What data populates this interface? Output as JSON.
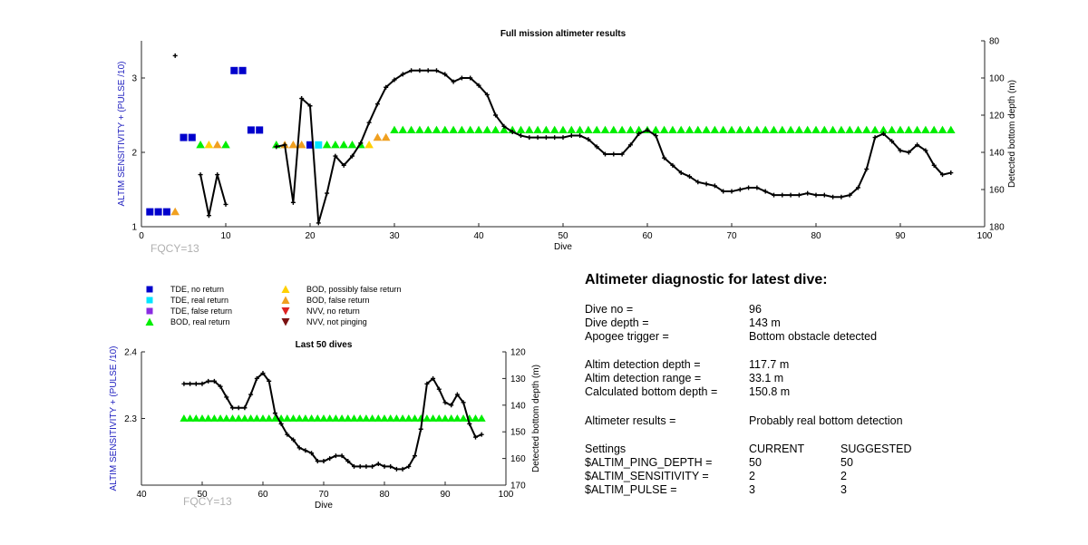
{
  "colors": {
    "tde_no": "#0000cc",
    "tde_real": "#00e5ff",
    "tde_false": "#8a2be2",
    "bod_real": "#00ee00",
    "bod_possibly_false": "#ffd000",
    "bod_false": "#f0a020",
    "nvv_no": "#dd2222",
    "nvv_not": "#7a1010",
    "depth_line": "#000000",
    "axis_blue": "#1f1fbf",
    "fqcy": "#b0b0b0"
  },
  "legend": [
    {
      "marker": "square",
      "color": "tde_no",
      "label": "TDE, no return"
    },
    {
      "marker": "square",
      "color": "tde_real",
      "label": "TDE, real return"
    },
    {
      "marker": "square",
      "color": "tde_false",
      "label": "TDE, false return"
    },
    {
      "marker": "triangle",
      "color": "bod_real",
      "label": "BOD, real return"
    },
    {
      "marker": "triangle",
      "color": "bod_possibly_false",
      "label": "BOD, possibly false return"
    },
    {
      "marker": "triangle",
      "color": "bod_false",
      "label": "BOD, false return"
    },
    {
      "marker": "triangle-down",
      "color": "nvv_no",
      "label": "NVV, no return"
    },
    {
      "marker": "triangle-down",
      "color": "nvv_not",
      "label": "NVV, not pinging"
    }
  ],
  "chart_data": [
    {
      "type": "scatter",
      "title": "Full mission altimeter results",
      "xlabel": "Dive",
      "ylabel": "ALTIM SENSITIVITY + (PULSE /10)",
      "y2label": "Detected bottom depth (m)",
      "annotation": "FQCY=13",
      "xlim": [
        0,
        100
      ],
      "ylim": [
        1,
        3.5
      ],
      "y2lim": [
        80,
        180
      ],
      "y2_reversed": true,
      "xticks": [
        0,
        10,
        20,
        30,
        40,
        50,
        60,
        70,
        80,
        90,
        100
      ],
      "yticks": [
        1,
        2,
        3
      ],
      "y2ticks": [
        80,
        100,
        120,
        140,
        160,
        180
      ],
      "series": [
        {
          "marker": "square",
          "color": "tde_no",
          "x": [
            1,
            2,
            3,
            5,
            6,
            11,
            12,
            13,
            14,
            20
          ],
          "y": [
            1.2,
            1.2,
            1.2,
            2.2,
            2.2,
            3.1,
            3.1,
            2.3,
            2.3,
            2.1
          ]
        },
        {
          "marker": "square",
          "color": "tde_real",
          "x": [
            21
          ],
          "y": [
            2.1
          ]
        },
        {
          "marker": "triangle",
          "color": "bod_false",
          "x": [
            4,
            9,
            17,
            18,
            19,
            28,
            29
          ],
          "y": [
            1.2,
            2.1,
            2.1,
            2.1,
            2.1,
            2.2,
            2.2
          ]
        },
        {
          "marker": "triangle",
          "color": "bod_possibly_false",
          "x": [
            8,
            27
          ],
          "y": [
            2.1,
            2.1
          ]
        },
        {
          "marker": "triangle",
          "color": "bod_real",
          "x": [
            7,
            10,
            16,
            22,
            23,
            24,
            25,
            26,
            30,
            31,
            32,
            33,
            34,
            35,
            36,
            37,
            38,
            39,
            40,
            41,
            42,
            43,
            44,
            45,
            46,
            47,
            48,
            49,
            50,
            51,
            52,
            53,
            54,
            55,
            56,
            57,
            58,
            59,
            60,
            61,
            62,
            63,
            64,
            65,
            66,
            67,
            68,
            69,
            70,
            71,
            72,
            73,
            74,
            75,
            76,
            77,
            78,
            79,
            80,
            81,
            82,
            83,
            84,
            85,
            86,
            87,
            88,
            89,
            90,
            91,
            92,
            93,
            94,
            95,
            96
          ],
          "y": [
            2.1,
            2.1,
            2.1,
            2.1,
            2.1,
            2.1,
            2.1,
            2.1,
            2.3,
            2.3,
            2.3,
            2.3,
            2.3,
            2.3,
            2.3,
            2.3,
            2.3,
            2.3,
            2.3,
            2.3,
            2.3,
            2.3,
            2.3,
            2.3,
            2.3,
            2.3,
            2.3,
            2.3,
            2.3,
            2.3,
            2.3,
            2.3,
            2.3,
            2.3,
            2.3,
            2.3,
            2.3,
            2.3,
            2.3,
            2.3,
            2.3,
            2.3,
            2.3,
            2.3,
            2.3,
            2.3,
            2.3,
            2.3,
            2.3,
            2.3,
            2.3,
            2.3,
            2.3,
            2.3,
            2.3,
            2.3,
            2.3,
            2.3,
            2.3,
            2.3,
            2.3,
            2.3,
            2.3,
            2.3,
            2.3,
            2.3,
            2.3,
            2.3,
            2.3,
            2.3,
            2.3,
            2.3,
            2.3,
            2.3,
            2.3
          ]
        },
        {
          "marker": "plus-line",
          "color": "depth_line",
          "axis": "y2",
          "segments": [
            {
              "x": [
                4
              ],
              "y": [
                88
              ]
            },
            {
              "x": [
                7,
                8,
                9,
                10
              ],
              "y": [
                152,
                174,
                152,
                168
              ]
            },
            {
              "x": [
                16,
                17,
                18,
                19,
                20,
                21,
                22,
                23,
                24,
                25,
                26,
                27,
                28,
                29,
                30,
                31,
                32,
                33,
                34,
                35,
                36,
                37,
                38,
                39,
                40,
                41,
                42,
                43,
                44,
                45,
                46,
                47,
                48,
                49,
                50,
                51,
                52,
                53,
                54,
                55,
                56,
                57,
                58,
                59,
                60,
                61,
                62,
                63,
                64,
                65,
                66,
                67,
                68,
                69,
                70,
                71,
                72,
                73,
                74,
                75,
                76,
                77,
                78,
                79,
                80,
                81,
                82,
                83,
                84,
                85,
                86,
                87,
                88,
                89,
                90,
                91,
                92,
                93,
                94,
                95,
                96
              ],
              "y": [
                137,
                136,
                167,
                111,
                115,
                178,
                162,
                142,
                147,
                142,
                135,
                124,
                114,
                105,
                101,
                98,
                96,
                96,
                96,
                96,
                98,
                102,
                100,
                100,
                104,
                109,
                120,
                126,
                129,
                131,
                132,
                132,
                132,
                132,
                132,
                131,
                131,
                133,
                137,
                141,
                141,
                141,
                136,
                130,
                128,
                131,
                143,
                147,
                151,
                153,
                156,
                157,
                158,
                161,
                161,
                160,
                159,
                159,
                161,
                163,
                163,
                163,
                163,
                162,
                163,
                163,
                164,
                164,
                163,
                159,
                149,
                132,
                130,
                134,
                139,
                140,
                136,
                139,
                147,
                152,
                151
              ]
            }
          ]
        }
      ]
    },
    {
      "type": "scatter",
      "title": "Last 50 dives",
      "xlabel": "Dive",
      "ylabel": "ALTIM SENSITIVITY + (PULSE /10)",
      "y2label": "Detected bottom depth (m)",
      "annotation": "FQCY=13",
      "xlim": [
        40,
        100
      ],
      "ylim": [
        2.2,
        2.4
      ],
      "y2lim": [
        120,
        170
      ],
      "y2_reversed": true,
      "xticks": [
        40,
        50,
        60,
        70,
        80,
        90,
        100
      ],
      "yticks": [
        2.3,
        2.4
      ],
      "y2ticks": [
        120,
        130,
        140,
        150,
        160,
        170
      ],
      "series": [
        {
          "marker": "triangle",
          "color": "bod_real",
          "x": [
            47,
            48,
            49,
            50,
            51,
            52,
            53,
            54,
            55,
            56,
            57,
            58,
            59,
            60,
            61,
            62,
            63,
            64,
            65,
            66,
            67,
            68,
            69,
            70,
            71,
            72,
            73,
            74,
            75,
            76,
            77,
            78,
            79,
            80,
            81,
            82,
            83,
            84,
            85,
            86,
            87,
            88,
            89,
            90,
            91,
            92,
            93,
            94,
            95,
            96
          ],
          "y": [
            2.3,
            2.3,
            2.3,
            2.3,
            2.3,
            2.3,
            2.3,
            2.3,
            2.3,
            2.3,
            2.3,
            2.3,
            2.3,
            2.3,
            2.3,
            2.3,
            2.3,
            2.3,
            2.3,
            2.3,
            2.3,
            2.3,
            2.3,
            2.3,
            2.3,
            2.3,
            2.3,
            2.3,
            2.3,
            2.3,
            2.3,
            2.3,
            2.3,
            2.3,
            2.3,
            2.3,
            2.3,
            2.3,
            2.3,
            2.3,
            2.3,
            2.3,
            2.3,
            2.3,
            2.3,
            2.3,
            2.3,
            2.3,
            2.3,
            2.3
          ]
        },
        {
          "marker": "plus-line",
          "color": "depth_line",
          "axis": "y2",
          "segments": [
            {
              "x": [
                47,
                48,
                49,
                50,
                51,
                52,
                53,
                54,
                55,
                56,
                57,
                58,
                59,
                60,
                61,
                62,
                63,
                64,
                65,
                66,
                67,
                68,
                69,
                70,
                71,
                72,
                73,
                74,
                75,
                76,
                77,
                78,
                79,
                80,
                81,
                82,
                83,
                84,
                85,
                86,
                87,
                88,
                89,
                90,
                91,
                92,
                93,
                94,
                95,
                96
              ],
              "y": [
                132,
                132,
                132,
                132,
                131,
                131,
                133,
                137,
                141,
                141,
                141,
                136,
                130,
                128,
                131,
                143,
                147,
                151,
                153,
                156,
                157,
                158,
                161,
                161,
                160,
                159,
                159,
                161,
                163,
                163,
                163,
                163,
                162,
                163,
                163,
                164,
                164,
                163,
                159,
                149,
                132,
                130,
                134,
                139,
                140,
                136,
                139,
                147,
                152,
                151
              ]
            }
          ]
        }
      ]
    }
  ],
  "diagnostic": {
    "title": "Altimeter diagnostic for latest dive:",
    "rows": [
      {
        "label": "Dive no =",
        "value": "96"
      },
      {
        "label": "Dive depth =",
        "value": "143 m"
      },
      {
        "label": "Apogee trigger =",
        "value": "Bottom obstacle detected"
      },
      {
        "label": "Altim detection depth =",
        "value": "117.7 m"
      },
      {
        "label": "Altim detection range =",
        "value": "33.1 m"
      },
      {
        "label": "Calculated bottom depth =",
        "value": "150.8 m"
      },
      {
        "label": "Altimeter results =",
        "value": "Probably real bottom detection"
      }
    ],
    "settings": {
      "header": {
        "label": "Settings",
        "current": "CURRENT",
        "suggested": "SUGGESTED"
      },
      "items": [
        {
          "label": "$ALTIM_PING_DEPTH =",
          "current": "50",
          "suggested": "50"
        },
        {
          "label": "$ALTIM_SENSITIVITY =",
          "current": "2",
          "suggested": "2"
        },
        {
          "label": "$ALTIM_PULSE =",
          "current": "3",
          "suggested": "3"
        }
      ]
    }
  }
}
